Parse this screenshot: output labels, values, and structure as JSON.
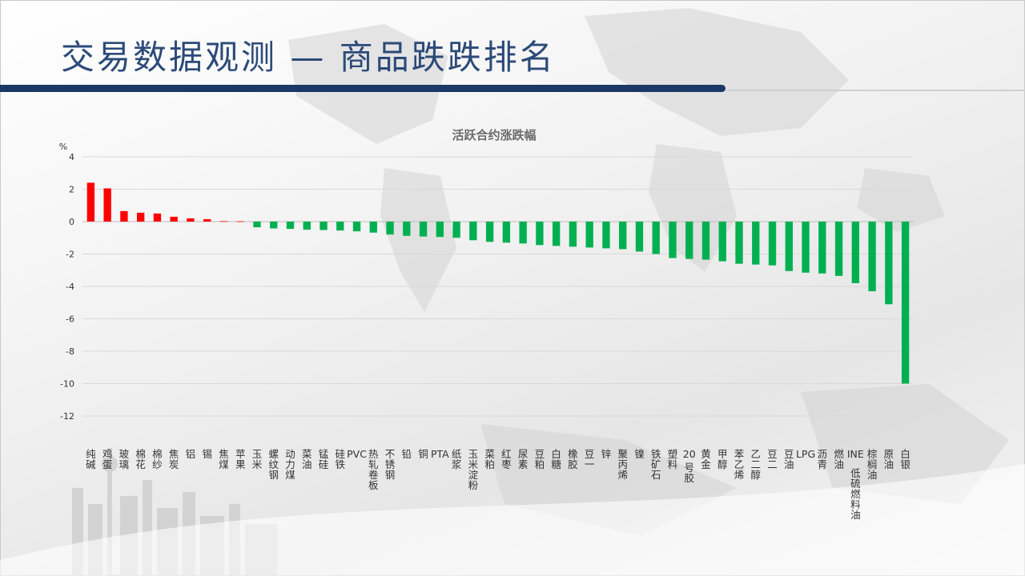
{
  "slide": {
    "title": "交易数据观测 — 商品跌跌排名"
  },
  "chart_data": {
    "type": "bar",
    "title": "活跃合约涨跌幅",
    "ylabel": "%",
    "ylim": [
      -12,
      4
    ],
    "yticks": [
      4,
      2,
      0,
      -2,
      -4,
      -6,
      -8,
      -10,
      -12
    ],
    "grid": true,
    "legend": "none",
    "positive_color": "#ff0000",
    "negative_color": "#00b050",
    "categories": [
      "纯碱",
      "鸡蛋",
      "玻璃",
      "棉花",
      "棉纱",
      "焦炭",
      "铝",
      "锡",
      "焦煤",
      "苹果",
      "玉米",
      "螺纹钢",
      "动力煤",
      "菜油",
      "锰硅",
      "硅铁",
      "PVC",
      "热轧卷板",
      "不锈钢",
      "铅",
      "铜",
      "PTA",
      "纸浆",
      "玉米淀粉",
      "菜粕",
      "红枣",
      "尿素",
      "豆粕",
      "白糖",
      "橡胶",
      "豆一",
      "锌",
      "聚丙烯",
      "镍",
      "铁矿石",
      "塑料",
      "20号胶",
      "黄金",
      "甲醇",
      "苯乙烯",
      "乙二醇",
      "豆二",
      "豆油",
      "LPG",
      "沥青",
      "燃油",
      "INE低硫燃料油",
      "棕榈油",
      "原油",
      "白银"
    ],
    "values": [
      2.4,
      2.05,
      0.65,
      0.55,
      0.5,
      0.3,
      0.2,
      0.15,
      0.03,
      0.02,
      -0.35,
      -0.42,
      -0.45,
      -0.5,
      -0.52,
      -0.55,
      -0.6,
      -0.68,
      -0.8,
      -0.88,
      -0.92,
      -0.95,
      -1.0,
      -1.15,
      -1.25,
      -1.3,
      -1.35,
      -1.45,
      -1.5,
      -1.55,
      -1.6,
      -1.65,
      -1.7,
      -1.85,
      -2.0,
      -2.25,
      -2.3,
      -2.35,
      -2.45,
      -2.6,
      -2.65,
      -2.7,
      -3.05,
      -3.15,
      -3.2,
      -3.35,
      -3.8,
      -4.3,
      -5.1,
      -10.0
    ]
  }
}
